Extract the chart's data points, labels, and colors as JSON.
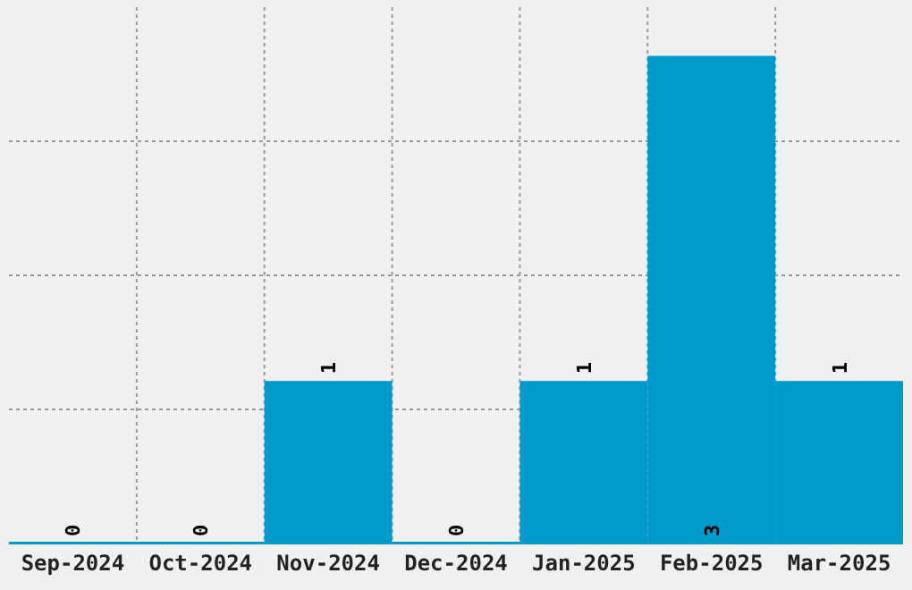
{
  "chart_data": {
    "type": "bar",
    "categories": [
      "Sep-2024",
      "Oct-2024",
      "Nov-2024",
      "Dec-2024",
      "Jan-2025",
      "Feb-2025",
      "Mar-2025"
    ],
    "values": [
      0,
      0,
      1,
      0,
      1,
      3,
      1
    ],
    "color": "#0099cc",
    "ylim": [
      0,
      3.3
    ],
    "yticks": [
      {
        "value": 0.825,
        "label": null
      },
      {
        "value": 1.65,
        "label": null
      },
      {
        "value": 2.475,
        "label": null
      }
    ],
    "tick_labels": "x",
    "grid": true,
    "data_labels": true
  }
}
